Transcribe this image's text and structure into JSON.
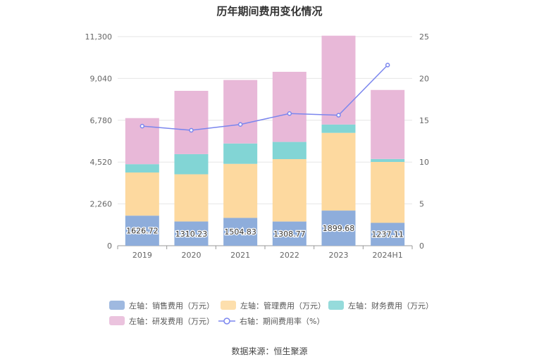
{
  "chart_data": {
    "type": "bar",
    "title": "历年期间费用变化情况",
    "categories": [
      "2019",
      "2020",
      "2021",
      "2022",
      "2023",
      "2024H1"
    ],
    "stacked_series": [
      {
        "name": "左轴：销售费用（万元）",
        "color": "#8eaddb",
        "values": [
          1626.72,
          1310.23,
          1504.83,
          1308.77,
          1899.68,
          1237.11
        ],
        "labels": true
      },
      {
        "name": "左轴：管理费用（万元）",
        "color": "#fdd99f",
        "values": [
          2330,
          2550,
          2920,
          3370,
          4200,
          3290
        ]
      },
      {
        "name": "左轴：财务费用（万元）",
        "color": "#82d5d5",
        "values": [
          450,
          1090,
          1100,
          930,
          450,
          160
        ]
      },
      {
        "name": "左轴：研发费用（万元）",
        "color": "#e8b8d8",
        "values": [
          2490,
          3420,
          3430,
          3790,
          4800,
          3730
        ]
      }
    ],
    "line_series": {
      "name": "右轴：期间费用率（%）",
      "color": "#7b86ee",
      "values": [
        14.3,
        13.8,
        14.5,
        15.8,
        15.6,
        21.6
      ]
    },
    "y_left": {
      "min": 0,
      "max": 11300,
      "ticks": [
        0,
        2260,
        4520,
        6780,
        9040,
        11300
      ],
      "tick_labels": [
        "0",
        "2,260",
        "4,520",
        "6,780",
        "9,040",
        "11,300"
      ]
    },
    "y_right": {
      "min": 0,
      "max": 25,
      "ticks": [
        0,
        5,
        10,
        15,
        20,
        25
      ],
      "tick_labels": [
        "0",
        "5",
        "10",
        "15",
        "20",
        "25"
      ]
    },
    "grid": true,
    "legend_position": "bottom"
  },
  "source": "数据来源：恒生聚源"
}
